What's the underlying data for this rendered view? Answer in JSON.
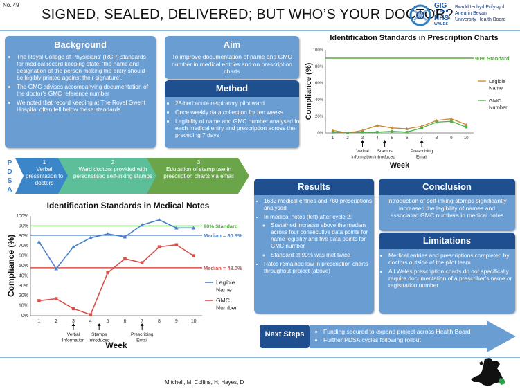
{
  "poster_number": "No. 49",
  "title": "SIGNED, SEALED, DELIVERED; BUT WHO’S YOUR DOCTOR?",
  "logo": {
    "mark": "GIG",
    "cymru": "CYMRU",
    "nhs": "NHS",
    "wales": "WALES",
    "line1": "Bwrdd Iechyd Prifysgol",
    "line2": "Aneurin Bevan",
    "line3": "University Health Board"
  },
  "background": {
    "heading": "Background",
    "bullets": [
      "The Royal College of Physicians’ (RCP) standards for medical record keeping state: ‘the name and designation of the person making the entry should be legibly printed against their signature’.",
      "The GMC advises accompanying documentation of the doctor’s GMC reference number",
      "We noted that record keeping at The Royal Gwent Hospital often fell below these standards"
    ]
  },
  "aim": {
    "heading": "Aim",
    "text": "To improve documentation of name and GMC number in medical entries and on prescription charts"
  },
  "method": {
    "heading": "Method",
    "bullets": [
      "28-bed acute respiratory pilot ward",
      "Once weekly data collection for ten weeks",
      "Legibility of name and GMC number analysed for each medical entry and prescription across the preceding 7 days"
    ]
  },
  "pdsa": {
    "letters": [
      "P",
      "D",
      "S",
      "A"
    ],
    "cycles": [
      {
        "num": "1",
        "text": "Verbal presentation to doctors"
      },
      {
        "num": "2",
        "text": "Ward doctors provided with personalised self-inking stamps"
      },
      {
        "num": "3",
        "text": "Education of stamp use in prescription charts via email"
      }
    ]
  },
  "results": {
    "heading": "Results",
    "bullets": [
      "1632 medical entries and 780 prescriptions analysed",
      "In medical notes (left) after cycle 2:",
      "Rates remained low in prescription charts throughout project (above)"
    ],
    "sub_bullets": [
      "Sustained increase above the median across four consecutive data points for name legibility and five data points for GMC number",
      "Standard of 90% was met twice"
    ]
  },
  "conclusion": {
    "heading": "Conclusion",
    "text": "Introduction of self-inking stamps significantly increased the legibility of names and associated GMC numbers in medical notes"
  },
  "limitations": {
    "heading": "Limitations",
    "bullets": [
      "Medical entries and prescriptions completed by doctors outside of the pilot team",
      "All Wales prescription charts do not specifically require documentation of a prescriber’s name or registration number"
    ]
  },
  "next_steps": {
    "label": "Next Steps",
    "bullets": [
      "Funding secured to expand project across Health Board",
      "Further PDSA cycles following rollout"
    ]
  },
  "authors": "Mitchell, M; Collins, H; Hayes, D",
  "colors": {
    "legible": "#4a7fc9",
    "gmc": "#d9504a",
    "standard": "#5aa84a",
    "legible_rx": "#c88a2a",
    "gmc_rx": "#4eb04e"
  },
  "chart_data": [
    {
      "type": "line",
      "title": "Identification Standards in Medical Notes",
      "xlabel": "Week",
      "ylabel": "Compliance (%)",
      "x": [
        1,
        2,
        3,
        4,
        5,
        6,
        7,
        8,
        9,
        10
      ],
      "ylim": [
        0,
        100
      ],
      "yticks": [
        "0%",
        "10%",
        "20%",
        "30%",
        "40%",
        "50%",
        "60%",
        "70%",
        "80%",
        "90%",
        "100%"
      ],
      "series": [
        {
          "name": "Legible Name",
          "values": [
            74,
            47,
            69,
            78,
            82,
            79,
            91,
            96,
            88,
            88
          ]
        },
        {
          "name": "GMC Number",
          "values": [
            15,
            17,
            7,
            1,
            43,
            57,
            53,
            69,
            71,
            60
          ]
        }
      ],
      "reference_lines": [
        {
          "label": "90% Standard",
          "value": 90
        },
        {
          "label": "Median = 80.6%",
          "value": 80.6
        },
        {
          "label": "Median = 48.0%",
          "value": 48.0
        }
      ],
      "annotations": [
        {
          "x": 3,
          "text": "Verbal Information"
        },
        {
          "x": 4.5,
          "text": "Stamps Introduced"
        },
        {
          "x": 7,
          "text": "Prescribing Email"
        }
      ],
      "legend": "right",
      "grid": false
    },
    {
      "type": "line",
      "title": "Identification Standards in Prescription Charts",
      "xlabel": "Week",
      "ylabel": "Compliance (%)",
      "x": [
        1,
        2,
        3,
        4,
        5,
        6,
        7,
        8,
        9,
        10
      ],
      "ylim": [
        0,
        100
      ],
      "yticks": [
        "0%",
        "20%",
        "40%",
        "60%",
        "80%",
        "100%"
      ],
      "series": [
        {
          "name": "Legible Name",
          "values": [
            3,
            0,
            3,
            9,
            6,
            5,
            8,
            15,
            17,
            10
          ]
        },
        {
          "name": "GMC Number",
          "values": [
            1,
            0,
            1,
            1,
            2,
            1,
            6,
            13,
            14,
            7
          ]
        }
      ],
      "reference_lines": [
        {
          "label": "90% Standard",
          "value": 90
        }
      ],
      "annotations": [
        {
          "x": 3,
          "text": "Verbal Information"
        },
        {
          "x": 4.5,
          "text": "Stamps Introduced"
        },
        {
          "x": 7,
          "text": "Prescribing Email"
        }
      ],
      "legend": "right",
      "grid": false
    }
  ]
}
